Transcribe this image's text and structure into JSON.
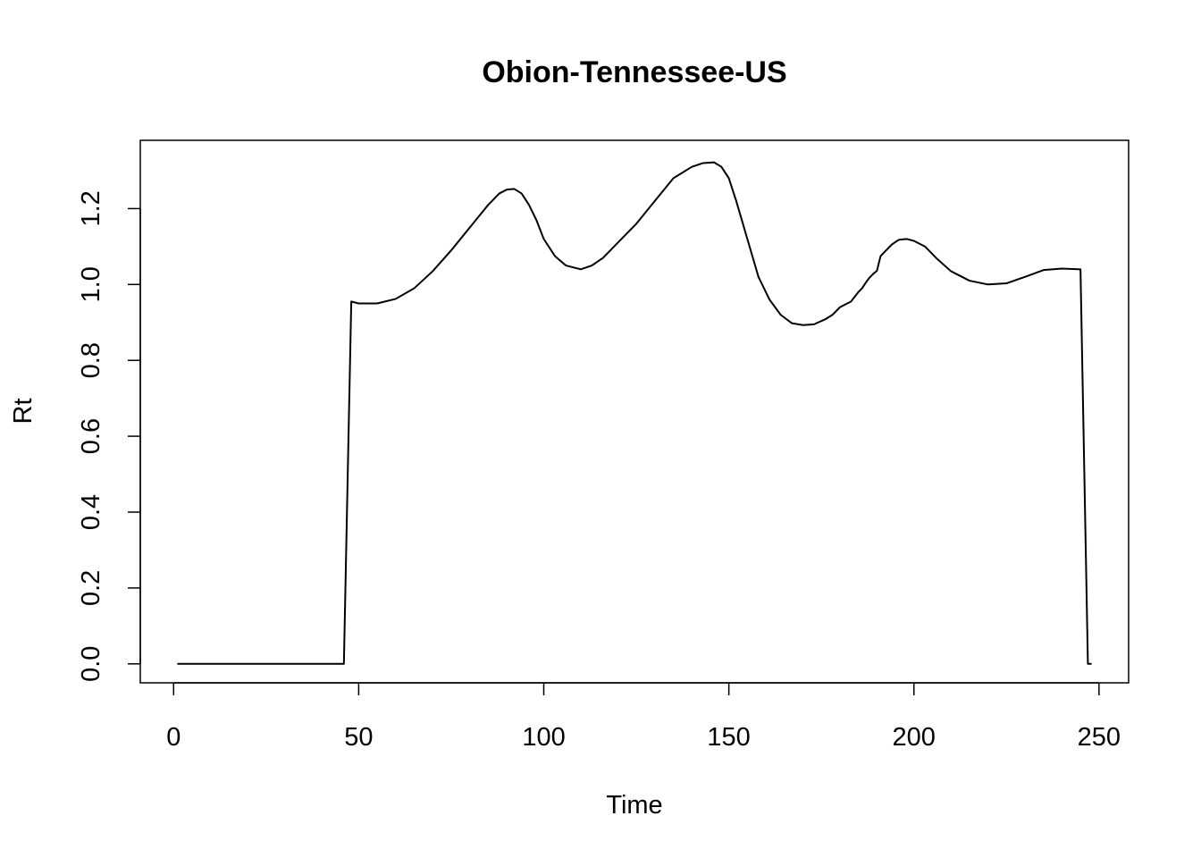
{
  "chart_data": {
    "type": "line",
    "title": "Obion-Tennessee-US",
    "xlabel": "Time",
    "ylabel": "Rt",
    "xlim": [
      -9,
      258
    ],
    "ylim": [
      -0.05,
      1.38
    ],
    "x_ticks": [
      0,
      50,
      100,
      150,
      200,
      250
    ],
    "y_ticks": [
      0.0,
      0.2,
      0.4,
      0.6,
      0.8,
      1.0,
      1.2
    ],
    "x_tick_labels": [
      "0",
      "50",
      "100",
      "150",
      "200",
      "250"
    ],
    "y_tick_labels": [
      "0.0",
      "0.2",
      "0.4",
      "0.6",
      "0.8",
      "1.0",
      "1.2"
    ],
    "grid": false,
    "line_color": "#000000",
    "series": [
      {
        "x": [
          1,
          10,
          20,
          30,
          40,
          46,
          47,
          48,
          50,
          55,
          60,
          65,
          70,
          75,
          80,
          85,
          88,
          90,
          92,
          94,
          96,
          98,
          100,
          103,
          106,
          110,
          113,
          116,
          120,
          125,
          130,
          135,
          140,
          143,
          146,
          148,
          150,
          152,
          155,
          158,
          161,
          164,
          167,
          170,
          173,
          176,
          178,
          180,
          183,
          185,
          186,
          187,
          188,
          189,
          190,
          191,
          192,
          193,
          194,
          195,
          196,
          198,
          200,
          203,
          206,
          210,
          215,
          220,
          225,
          230,
          235,
          240,
          245,
          247,
          248
        ],
        "y": [
          0.0,
          0.0,
          0.0,
          0.0,
          0.0,
          0.0,
          0.48,
          0.955,
          0.95,
          0.95,
          0.962,
          0.99,
          1.035,
          1.09,
          1.15,
          1.21,
          1.24,
          1.25,
          1.252,
          1.24,
          1.21,
          1.17,
          1.12,
          1.075,
          1.05,
          1.04,
          1.05,
          1.07,
          1.11,
          1.16,
          1.22,
          1.28,
          1.31,
          1.32,
          1.322,
          1.31,
          1.28,
          1.22,
          1.12,
          1.02,
          0.96,
          0.92,
          0.898,
          0.893,
          0.895,
          0.908,
          0.92,
          0.94,
          0.955,
          0.98,
          0.99,
          1.005,
          1.018,
          1.028,
          1.036,
          1.075,
          1.085,
          1.095,
          1.105,
          1.112,
          1.118,
          1.12,
          1.115,
          1.1,
          1.07,
          1.035,
          1.01,
          1.0,
          1.003,
          1.02,
          1.038,
          1.042,
          1.04,
          0.0,
          0.0
        ]
      }
    ]
  }
}
